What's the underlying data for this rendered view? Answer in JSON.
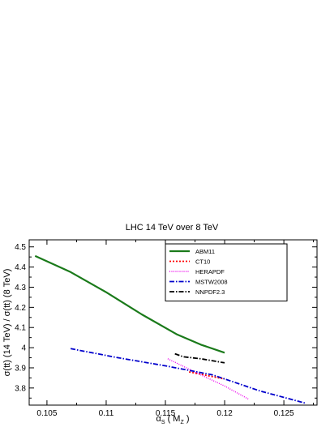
{
  "chart_data": {
    "type": "line",
    "title": "LHC 14 TeV over 8 TeV",
    "xlabel": {
      "main": "α",
      "sub": "S",
      "rest": " ( M",
      "sub2": "Z",
      "end": " )"
    },
    "ylabel": "σ(tt) (14 TeV) / σ(tt) (8 TeV)",
    "xlim": [
      0.1035,
      0.1278
    ],
    "ylim": [
      3.715,
      4.535
    ],
    "xticks": [
      "0.105",
      "0.11",
      "0.115",
      "0.12",
      "0.125"
    ],
    "xtick_values": [
      0.105,
      0.11,
      0.115,
      0.12,
      0.125
    ],
    "yticks": [
      "3.8",
      "3.9",
      "4",
      "4.1",
      "4.2",
      "4.3",
      "4.4",
      "4.5"
    ],
    "ytick_values": [
      3.8,
      3.9,
      4.0,
      4.1,
      4.2,
      4.3,
      4.4,
      4.5
    ],
    "grid": false,
    "legend_position": "top-right",
    "series": [
      {
        "name": "ABM11",
        "color": "#1a7a1a",
        "dash": "",
        "width": 2.2,
        "x": [
          0.104,
          0.107,
          0.11,
          0.113,
          0.116,
          0.118,
          0.12
        ],
        "y": [
          4.455,
          4.375,
          4.275,
          4.165,
          4.065,
          4.015,
          3.975
        ]
      },
      {
        "name": "CT10",
        "color": "#ff0000",
        "dash": "2,2",
        "width": 1.8,
        "x": [
          0.117,
          0.118,
          0.119,
          0.12
        ],
        "y": [
          3.88,
          3.868,
          3.856,
          3.845
        ]
      },
      {
        "name": "HERAPDF",
        "color": "#ee00ee",
        "dash": "1,1.5",
        "width": 1.4,
        "x": [
          0.1152,
          0.118,
          0.12,
          0.122
        ],
        "y": [
          3.945,
          3.865,
          3.81,
          3.745
        ]
      },
      {
        "name": "MSTW2008",
        "color": "#0000cc",
        "dash": "6,2,1.5,2",
        "width": 1.8,
        "x": [
          0.107,
          0.111,
          0.115,
          0.119,
          0.123,
          0.1268
        ],
        "y": [
          3.995,
          3.95,
          3.91,
          3.865,
          3.785,
          3.725
        ]
      },
      {
        "name": "NNPDF2.3",
        "color": "#000000",
        "dash": "6,2,1.5,2",
        "width": 1.8,
        "x": [
          0.1158,
          0.1165,
          0.118,
          0.12
        ],
        "y": [
          3.97,
          3.955,
          3.945,
          3.925
        ]
      }
    ]
  }
}
